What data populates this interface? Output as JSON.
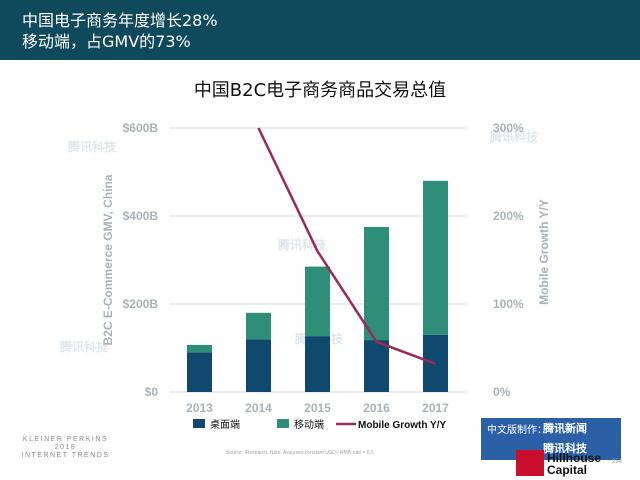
{
  "header": {
    "title_line1": "中国电子商务年度增长28%",
    "title_line2": "移动端，占GMV的73%"
  },
  "watermark": "腾讯科技",
  "source_note": "Source: iResearch. Note: Assumes constant USD / RMB rate = 6.5.",
  "footer": {
    "kpcb_line1": "KLEINER PERKINS",
    "kpcb_line2": "2018",
    "kpcb_line3": "INTERNET TRENDS",
    "badge_label": "中文版制作：",
    "badge_name1": "腾讯新闻",
    "badge_name2": "腾讯科技",
    "hillhouse_line1": "Hillhouse",
    "hillhouse_line2": "Capital",
    "page_number": "254"
  },
  "chart_data": {
    "type": "bar",
    "title": "中国B2C电子商务商品交易总值",
    "categories": [
      "2013",
      "2014",
      "2015",
      "2016",
      "2017"
    ],
    "series": [
      {
        "name": "桌面端",
        "values": [
          90,
          120,
          127,
          118,
          130
        ],
        "color": "#0f4a6e"
      },
      {
        "name": "移动端",
        "values": [
          17,
          60,
          158,
          257,
          350
        ],
        "color": "#2e8e7a"
      }
    ],
    "line_series": {
      "name": "Mobile Growth Y/Y",
      "values": [
        null,
        300,
        160,
        57,
        32
      ],
      "color": "#9a2a5a"
    },
    "ylabel": "B2C E-Commerce GMV, China",
    "ylabel_right": "Mobile Growth  Y/Y",
    "ylim": [
      0,
      600
    ],
    "ylim_right": [
      0,
      300
    ],
    "yticks": [
      "$0",
      "$200B",
      "$400B",
      "$600B"
    ],
    "yticks_right": [
      "0%",
      "100%",
      "200%",
      "300%"
    ],
    "grid": true,
    "stacked": true,
    "legend_position": "bottom"
  }
}
